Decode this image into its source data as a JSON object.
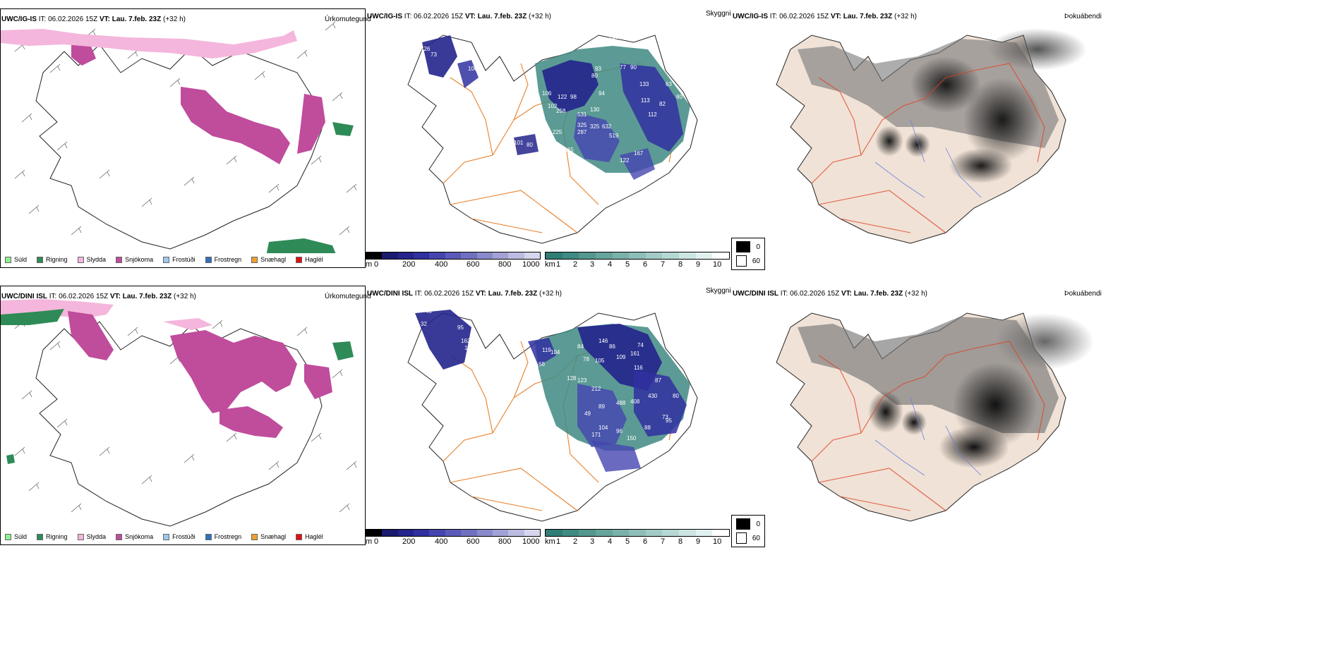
{
  "rows": [
    {
      "model": "UWC/IG-IS",
      "it_label": "IT:",
      "it_value": "06.02.2026 15Z",
      "vt_label": "VT:",
      "vt_value": "Lau. 7.feb. 23Z",
      "lead": "(+32 h)"
    },
    {
      "model": "UWC/DINI ISL",
      "it_label": "IT:",
      "it_value": "06.02.2026 15Z",
      "vt_label": "VT:",
      "vt_value": "Lau. 7.feb. 23Z",
      "lead": "(+32 h)"
    }
  ],
  "panel_labels": {
    "precip": "Úrkomutegund",
    "cloud": "Skyggni",
    "fog": "Þokuábendi"
  },
  "precip_legend": [
    {
      "label": "Súld",
      "color": "#90ee90"
    },
    {
      "label": "Rigning",
      "color": "#2e8b57"
    },
    {
      "label": "Slydda",
      "color": "#f4b6dc"
    },
    {
      "label": "Snjókoma",
      "color": "#c04c9c"
    },
    {
      "label": "Frostúði",
      "color": "#9cc8f0"
    },
    {
      "label": "Frostregn",
      "color": "#3070c0"
    },
    {
      "label": "Snæhagl",
      "color": "#f0a030"
    },
    {
      "label": "Haglél",
      "color": "#e01010"
    }
  ],
  "cloud_base_bar": {
    "unit": "m",
    "ticks": [
      "0",
      "200",
      "400",
      "600",
      "800",
      "1000"
    ],
    "colors": [
      "#000000",
      "#1a1a6e",
      "#24248c",
      "#3030a0",
      "#4545b0",
      "#5a5ab8",
      "#7070c0",
      "#8a8acb",
      "#a2a2d6",
      "#bcbce2",
      "#d6d6ee"
    ]
  },
  "visibility_bar": {
    "unit": "km",
    "ticks": [
      "1",
      "2",
      "3",
      "4",
      "5",
      "6",
      "7",
      "8",
      "9",
      "10"
    ],
    "colors": [
      "#2f7d75",
      "#3f8a82",
      "#53978f",
      "#66a49c",
      "#7ab1aa",
      "#8ebeb8",
      "#a2cbc6",
      "#b6d8d4",
      "#cbe5e2",
      "#e0f1ef",
      "#ffffff"
    ]
  },
  "fog_legend": [
    {
      "label": "0",
      "color": "#000000"
    },
    {
      "label": "60",
      "color": "#ffffff"
    }
  ],
  "cloud_numbers": {
    "top": [
      "77",
      "126",
      "73",
      "68",
      "113",
      "100",
      "106",
      "122",
      "98",
      "102",
      "258",
      "531",
      "130",
      "325",
      "325",
      "632",
      "225",
      "287",
      "519",
      "101",
      "80",
      "75",
      "115",
      "167",
      "122",
      "93",
      "80",
      "77",
      "90",
      "133",
      "82",
      "63",
      "80",
      "113",
      "112",
      "94",
      "201"
    ],
    "bottom": [
      "40",
      "32",
      "95",
      "162",
      "165",
      "14",
      "82",
      "119",
      "104",
      "84",
      "78",
      "105",
      "146",
      "86",
      "109",
      "161",
      "74",
      "116",
      "68",
      "128",
      "123",
      "212",
      "89",
      "488",
      "408",
      "430",
      "87",
      "73",
      "95",
      "88",
      "104",
      "96",
      "150",
      "171",
      "49",
      "80"
    ]
  }
}
